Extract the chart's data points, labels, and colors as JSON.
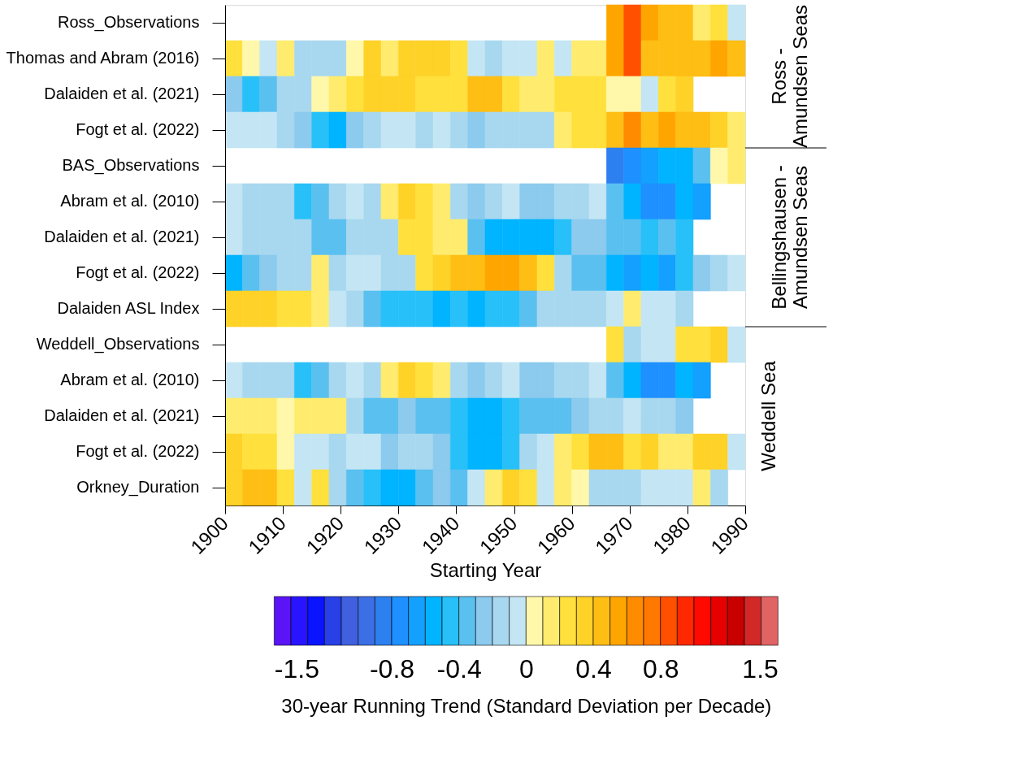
{
  "chart_data": {
    "type": "heatmap",
    "xlabel": "Starting Year",
    "clabel": "30-year Running Trend (Standard Deviation per Decade)",
    "y_categories": [
      "Ross_Observations",
      "Thomas and Abram (2016)",
      "Dalaiden et al. (2021)",
      "Fogt et al. (2022)",
      "BAS_Observations",
      "Abram et al. (2010)",
      "Dalaiden et al. (2021)",
      "Fogt et al. (2022)",
      "Dalaiden ASL Index",
      "Weddell_Observations",
      "Abram et al. (2010)",
      "Dalaiden et al. (2021)",
      "Fogt et al. (2022)",
      "Orkney_Duration"
    ],
    "y2_categories": [
      null,
      "Ross - Amundsen Seas",
      null,
      null,
      null,
      null,
      "Bellingshausen - Amundsen Seas",
      null,
      null,
      null,
      null,
      "Weddell Sea",
      null,
      null
    ],
    "x": [
      1901.5,
      1904.5,
      1907.5,
      1910.5,
      1913.5,
      1916.5,
      1919.5,
      1922.5,
      1925.5,
      1928.5,
      1931.5,
      1934.5,
      1937.5,
      1940.5,
      1943.5,
      1946.5,
      1949.5,
      1952.5,
      1955.5,
      1958.5,
      1961.5,
      1964.5,
      1967.5,
      1970.5,
      1973.5,
      1976.5,
      1979.5,
      1982.5,
      1985.5,
      1988.5
    ],
    "xlim": [
      1900,
      1990
    ],
    "xticks": [
      1900,
      1910,
      1920,
      1930,
      1940,
      1950,
      1960,
      1970,
      1980,
      1990
    ],
    "clim": [
      -1.5,
      1.5
    ],
    "cticks": [
      -1.5,
      -0.8,
      -0.4,
      0,
      0.4,
      0.8,
      1.5
    ],
    "colors": [
      "#5a14f5",
      "#2814ff",
      "#0a14ff",
      "#2840e6",
      "#4060e0",
      "#3c6ee6",
      "#2d80f0",
      "#1e90ff",
      "#14a0ff",
      "#00b4ff",
      "#28c0f8",
      "#5ac0f0",
      "#8ccaee",
      "#a8d8ef",
      "#c4e6f4",
      "#fff8aa",
      "#ffec6e",
      "#ffe03c",
      "#ffd228",
      "#ffbe14",
      "#ffa500",
      "#ff8c00",
      "#ff7800",
      "#ff5000",
      "#ff2800",
      "#ff0a00",
      "#e60000",
      "#c80000",
      "#d22828",
      "#e06464"
    ],
    "grid": false,
    "cells": [
      [
        null,
        null,
        null,
        null,
        null,
        null,
        null,
        null,
        null,
        null,
        null,
        null,
        null,
        null,
        null,
        null,
        null,
        null,
        null,
        null,
        null,
        null,
        0.55,
        0.85,
        0.55,
        0.45,
        0.45,
        0.15,
        0.25,
        -0.05
      ],
      [
        0.25,
        0.05,
        -0.05,
        0.15,
        -0.15,
        -0.15,
        -0.15,
        0.05,
        0.35,
        0.15,
        0.35,
        0.35,
        0.35,
        0.25,
        -0.05,
        -0.15,
        -0.05,
        -0.05,
        0.15,
        -0.05,
        0.15,
        0.15,
        0.55,
        0.85,
        0.45,
        0.45,
        0.45,
        0.45,
        0.55,
        0.45
      ],
      [
        -0.25,
        -0.45,
        -0.35,
        -0.15,
        -0.15,
        0.05,
        0.15,
        0.25,
        0.35,
        0.35,
        0.35,
        0.25,
        0.25,
        0.25,
        0.45,
        0.45,
        0.25,
        0.15,
        0.15,
        0.25,
        0.25,
        0.25,
        0.05,
        0.05,
        -0.05,
        0.25,
        0.35,
        null,
        null,
        null
      ],
      [
        -0.05,
        -0.05,
        -0.05,
        -0.15,
        -0.25,
        -0.45,
        -0.55,
        -0.25,
        -0.15,
        -0.05,
        -0.05,
        -0.15,
        -0.05,
        -0.15,
        -0.25,
        -0.15,
        -0.15,
        -0.15,
        -0.15,
        0.15,
        0.25,
        0.25,
        0.45,
        0.65,
        0.45,
        0.55,
        0.45,
        0.45,
        0.35,
        0.15
      ],
      [
        null,
        null,
        null,
        null,
        null,
        null,
        null,
        null,
        null,
        null,
        null,
        null,
        null,
        null,
        null,
        null,
        null,
        null,
        null,
        null,
        null,
        null,
        -0.85,
        -0.75,
        -0.65,
        -0.55,
        -0.55,
        -0.35,
        0.05,
        0.15
      ],
      [
        -0.05,
        -0.15,
        -0.15,
        -0.15,
        -0.45,
        -0.35,
        -0.15,
        -0.05,
        -0.15,
        0.15,
        0.35,
        0.25,
        0.15,
        -0.15,
        -0.25,
        -0.15,
        -0.05,
        -0.25,
        -0.25,
        -0.15,
        -0.15,
        -0.05,
        -0.35,
        -0.55,
        -0.75,
        -0.75,
        -0.55,
        -0.65,
        null,
        null
      ],
      [
        -0.05,
        -0.15,
        -0.15,
        -0.15,
        -0.15,
        -0.35,
        -0.35,
        -0.15,
        -0.15,
        -0.15,
        0.25,
        0.25,
        0.15,
        0.15,
        -0.35,
        -0.55,
        -0.55,
        -0.55,
        -0.55,
        -0.45,
        -0.25,
        -0.25,
        -0.35,
        -0.35,
        -0.45,
        -0.35,
        -0.45,
        null,
        null,
        null
      ],
      [
        -0.55,
        -0.35,
        -0.25,
        -0.15,
        -0.15,
        0.15,
        -0.15,
        -0.05,
        -0.05,
        -0.15,
        -0.15,
        0.25,
        0.35,
        0.45,
        0.45,
        0.55,
        0.55,
        0.45,
        0.25,
        -0.15,
        -0.35,
        -0.35,
        -0.55,
        -0.65,
        -0.55,
        -0.65,
        -0.45,
        -0.25,
        -0.15,
        -0.05
      ],
      [
        0.35,
        0.35,
        0.35,
        0.25,
        0.25,
        0.15,
        -0.05,
        -0.15,
        -0.35,
        -0.45,
        -0.45,
        -0.45,
        -0.55,
        -0.45,
        -0.55,
        -0.45,
        -0.45,
        -0.35,
        -0.15,
        -0.15,
        -0.15,
        -0.15,
        -0.05,
        0.15,
        -0.05,
        -0.05,
        -0.15,
        null,
        null,
        null
      ],
      [
        null,
        null,
        null,
        null,
        null,
        null,
        null,
        null,
        null,
        null,
        null,
        null,
        null,
        null,
        null,
        null,
        null,
        null,
        null,
        null,
        null,
        null,
        0.25,
        -0.15,
        -0.05,
        -0.05,
        0.25,
        0.25,
        0.35,
        -0.05
      ],
      [
        -0.05,
        -0.15,
        -0.15,
        -0.15,
        -0.45,
        -0.35,
        -0.15,
        -0.05,
        -0.15,
        0.15,
        0.35,
        0.25,
        0.15,
        -0.15,
        -0.25,
        -0.15,
        -0.05,
        -0.25,
        -0.25,
        -0.15,
        -0.15,
        -0.05,
        -0.35,
        -0.55,
        -0.75,
        -0.75,
        -0.55,
        -0.65,
        null,
        null
      ],
      [
        0.15,
        0.15,
        0.15,
        0.05,
        0.15,
        0.15,
        0.15,
        -0.15,
        -0.35,
        -0.35,
        -0.25,
        -0.35,
        -0.35,
        -0.45,
        -0.55,
        -0.55,
        -0.45,
        -0.35,
        -0.35,
        -0.35,
        -0.25,
        -0.15,
        -0.15,
        -0.05,
        -0.15,
        -0.15,
        -0.25,
        null,
        null,
        null
      ],
      [
        0.35,
        0.25,
        0.25,
        0.05,
        -0.05,
        -0.05,
        -0.15,
        -0.05,
        -0.05,
        -0.25,
        -0.15,
        -0.15,
        -0.25,
        -0.45,
        -0.55,
        -0.55,
        -0.45,
        -0.15,
        -0.05,
        0.15,
        0.25,
        0.45,
        0.45,
        0.25,
        0.35,
        0.15,
        0.15,
        0.35,
        0.35,
        -0.05
      ],
      [
        0.35,
        0.45,
        0.45,
        0.25,
        -0.05,
        0.25,
        -0.15,
        -0.35,
        -0.45,
        -0.55,
        -0.55,
        -0.35,
        -0.25,
        -0.35,
        -0.05,
        0.15,
        0.35,
        0.25,
        -0.05,
        0.15,
        0.05,
        -0.15,
        -0.15,
        -0.15,
        -0.05,
        -0.05,
        -0.05,
        0.15,
        -0.15,
        null
      ]
    ]
  }
}
